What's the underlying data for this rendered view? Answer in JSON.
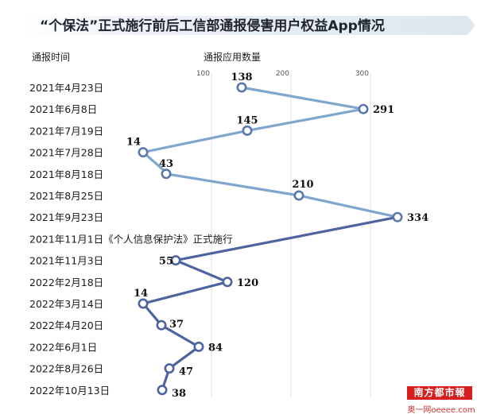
{
  "title": "“个保法”正式施行前后工信部通报侵害用户权益App情况",
  "y_header": "通报时间",
  "x_header": "通报应用数量",
  "note_row_label": "2021年11月1日《个人信息保护法》正式施行",
  "logo": {
    "main": "南方都市報",
    "sub": "奥一网oeeee.com"
  },
  "colors": {
    "line_light": "#7fa6cf",
    "line_dark": "#4f63a0",
    "marker_fill": "#ffffff",
    "title_band": "#e9eef5"
  },
  "chart_data": {
    "type": "line",
    "orientation": "horizontal-values",
    "title": "“个保法”正式施行前后工信部通报侵害用户权益App情况",
    "xlabel": "通报应用数量",
    "ylabel": "通报时间",
    "xticks": [
      100,
      200,
      300
    ],
    "categories": [
      "2021年4月23日",
      "2021年6月8日",
      "2021年7月19日",
      "2021年7月28日",
      "2021年8月18日",
      "2021年8月25日",
      "2021年9月23日",
      "2021年11月3日",
      "2022年2月18日",
      "2022年3月14日",
      "2022年4月20日",
      "2022年6月1日",
      "2022年8月26日",
      "2022年10月13日"
    ],
    "values": [
      138,
      291,
      145,
      14,
      43,
      210,
      334,
      55,
      120,
      14,
      37,
      84,
      47,
      38
    ],
    "grid": true
  }
}
